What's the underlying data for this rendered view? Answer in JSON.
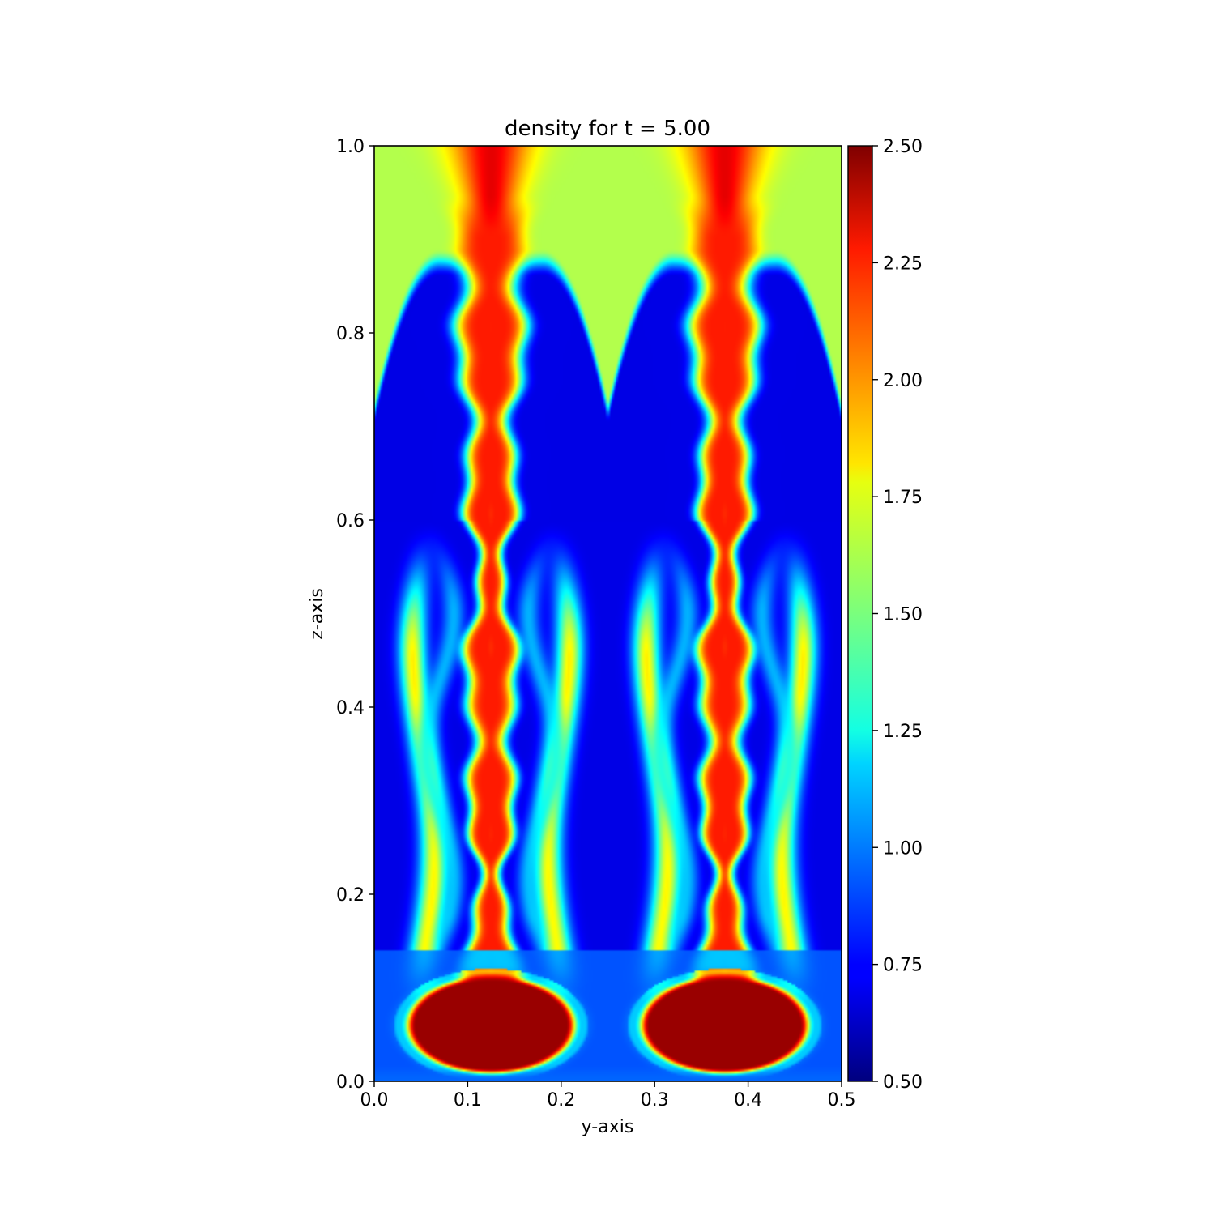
{
  "chart_data": {
    "type": "heatmap",
    "title": "density for t = 5.00",
    "xlabel": "y-axis",
    "ylabel": "z-axis",
    "xlim": [
      0.0,
      0.5
    ],
    "ylim": [
      0.0,
      1.0
    ],
    "x_ticks": [
      "0.0",
      "0.1",
      "0.2",
      "0.3",
      "0.4",
      "0.5"
    ],
    "y_ticks": [
      "0.0",
      "0.2",
      "0.4",
      "0.6",
      "0.8",
      "1.0"
    ],
    "colorbar": {
      "colormap": "jet",
      "range": [
        0.5,
        2.5
      ],
      "ticks": [
        "0.50",
        "0.75",
        "1.00",
        "1.25",
        "1.50",
        "1.75",
        "2.00",
        "2.25",
        "2.50"
      ]
    },
    "field": {
      "periods": 2,
      "bottom_caps": [
        {
          "y": 0.125,
          "z": 0.06,
          "value": 2.45
        },
        {
          "y": 0.375,
          "z": 0.06,
          "value": 2.45
        }
      ],
      "stems": [
        {
          "y": 0.125,
          "value": 2.2
        },
        {
          "y": 0.375,
          "value": 2.2
        }
      ],
      "light_top_band": {
        "z_from": 0.875,
        "z_to": 1.0,
        "value": 1.6
      },
      "light_fluid_value": 0.7,
      "bottom_layer_value": 0.95
    }
  }
}
